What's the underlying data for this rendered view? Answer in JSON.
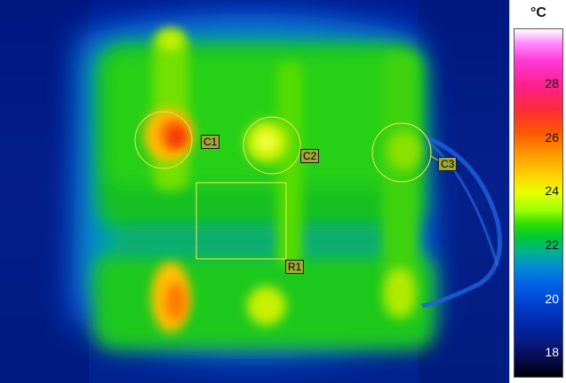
{
  "regions": [
    {
      "label": "C1",
      "shape": "circle"
    },
    {
      "label": "C2",
      "shape": "circle"
    },
    {
      "label": "C3",
      "shape": "circle"
    },
    {
      "label": "R1",
      "shape": "rectangle"
    }
  ],
  "scale": {
    "unit": "°C",
    "ticks": [
      "28",
      "26",
      "24",
      "22",
      "20",
      "18"
    ],
    "colors": {
      "roi_outline": "#d6e24a",
      "label_bg": "#9fa83a"
    }
  }
}
